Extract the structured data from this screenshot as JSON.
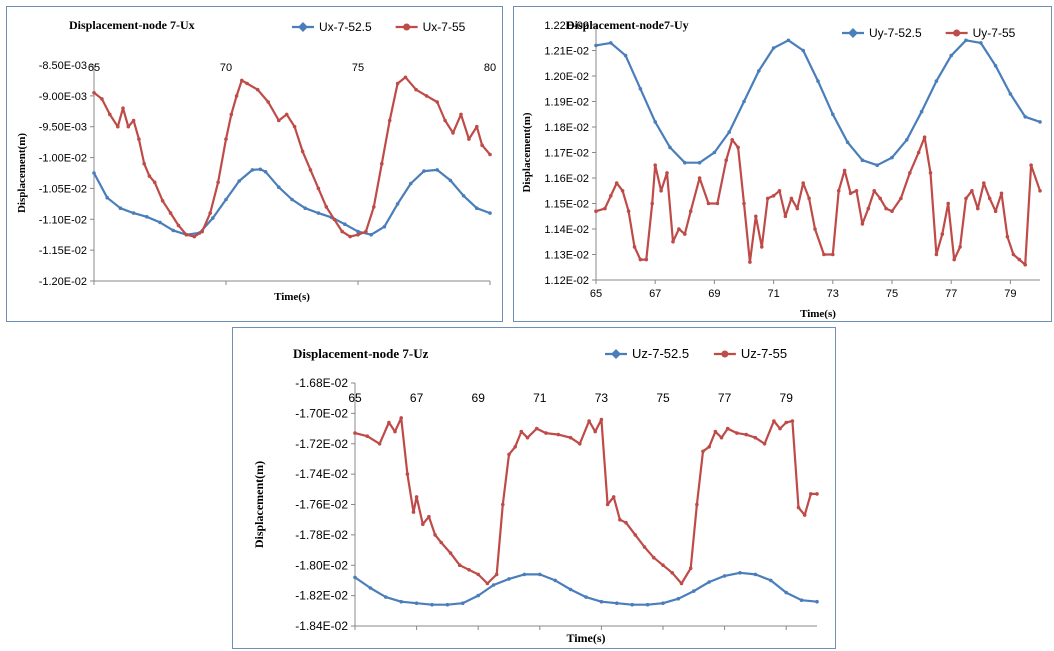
{
  "chart_data": [
    {
      "type": "line",
      "title": "Displacement-node 7-Ux",
      "xlabel": "Time(s)",
      "ylabel": "Displacement(m)",
      "xlim": [
        65,
        80
      ],
      "ylim": [
        -0.012,
        -0.0085
      ],
      "x_ticks": [
        65,
        70,
        75,
        80
      ],
      "x_tick_labels": [
        "65",
        "70",
        "75",
        "80"
      ],
      "y_ticks": [
        -0.0085,
        -0.009,
        -0.0095,
        -0.01,
        -0.0105,
        -0.011,
        -0.0115,
        -0.012
      ],
      "y_tick_labels": [
        "-8.50E-03",
        "-9.00E-03",
        "-9.50E-03",
        "-1.00E-02",
        "-1.05E-02",
        "-1.10E-02",
        "-1.15E-02",
        "-1.20E-02"
      ],
      "grid": false,
      "legend": "top-right",
      "series": [
        {
          "name": "Ux-7-52.5",
          "color": "#4a7ebb",
          "x": [
            65,
            65.5,
            66,
            66.5,
            67,
            67.5,
            68,
            68.5,
            69,
            69.5,
            70,
            70.5,
            71,
            71.3,
            71.5,
            72,
            72.5,
            73,
            73.5,
            74,
            74.5,
            75,
            75.5,
            76,
            76.5,
            77,
            77.5,
            78,
            78.5,
            79,
            79.5,
            80
          ],
          "y": [
            -0.01025,
            -0.01065,
            -0.01082,
            -0.0109,
            -0.01096,
            -0.01105,
            -0.01118,
            -0.01125,
            -0.01122,
            -0.01098,
            -0.01068,
            -0.01038,
            -0.0102,
            -0.01019,
            -0.01023,
            -0.01048,
            -0.01068,
            -0.01082,
            -0.0109,
            -0.01097,
            -0.01108,
            -0.0112,
            -0.01125,
            -0.01112,
            -0.01075,
            -0.01042,
            -0.01022,
            -0.0102,
            -0.01037,
            -0.01062,
            -0.01082,
            -0.0109
          ]
        },
        {
          "name": "Ux-7-55",
          "color": "#be4b48",
          "x": [
            65,
            65.3,
            65.6,
            65.9,
            66.1,
            66.3,
            66.5,
            66.7,
            66.9,
            67.1,
            67.3,
            67.6,
            67.9,
            68.2,
            68.5,
            68.8,
            69.1,
            69.4,
            69.7,
            70,
            70.2,
            70.4,
            70.6,
            70.8,
            71.2,
            71.6,
            72,
            72.3,
            72.6,
            72.9,
            73.2,
            73.5,
            73.8,
            74.1,
            74.4,
            74.7,
            75,
            75.3,
            75.6,
            75.9,
            76.2,
            76.5,
            76.8,
            77.2,
            77.6,
            78,
            78.3,
            78.6,
            78.9,
            79.2,
            79.5,
            79.7,
            80
          ],
          "y": [
            -0.00895,
            -0.00905,
            -0.0093,
            -0.0095,
            -0.0092,
            -0.0095,
            -0.0094,
            -0.0097,
            -0.0101,
            -0.0103,
            -0.0104,
            -0.0107,
            -0.0109,
            -0.0111,
            -0.01125,
            -0.01128,
            -0.0112,
            -0.0109,
            -0.0104,
            -0.0097,
            -0.0093,
            -0.009,
            -0.00875,
            -0.0088,
            -0.0089,
            -0.0091,
            -0.0094,
            -0.0093,
            -0.0095,
            -0.0099,
            -0.0102,
            -0.0105,
            -0.0108,
            -0.011,
            -0.0112,
            -0.01128,
            -0.01125,
            -0.0112,
            -0.0108,
            -0.0101,
            -0.0094,
            -0.0088,
            -0.0087,
            -0.0089,
            -0.009,
            -0.0091,
            -0.0094,
            -0.0096,
            -0.0093,
            -0.0097,
            -0.0095,
            -0.0098,
            -0.00995
          ]
        }
      ]
    },
    {
      "type": "line",
      "title": "Displacement-node7-Uy",
      "xlabel": "Time(s)",
      "ylabel": "Displacement(m)",
      "xlim": [
        65,
        80
      ],
      "ylim": [
        0.0112,
        0.0122
      ],
      "x_ticks": [
        65,
        67,
        69,
        71,
        73,
        75,
        77,
        79
      ],
      "x_tick_labels": [
        "65",
        "67",
        "69",
        "71",
        "73",
        "75",
        "77",
        "79"
      ],
      "y_ticks": [
        0.0122,
        0.0121,
        0.012,
        0.0119,
        0.0118,
        0.0117,
        0.0116,
        0.0115,
        0.0114,
        0.0113,
        0.0112
      ],
      "y_tick_labels": [
        "1.22E-02",
        "1.21E-02",
        "1.20E-02",
        "1.19E-02",
        "1.18E-02",
        "1.17E-02",
        "1.16E-02",
        "1.15E-02",
        "1.14E-02",
        "1.13E-02",
        "1.12E-02"
      ],
      "grid": false,
      "legend": "top-right",
      "series": [
        {
          "name": "Uy-7-52.5",
          "color": "#4a7ebb",
          "x": [
            65,
            65.5,
            66,
            66.5,
            67,
            67.5,
            68,
            68.5,
            69,
            69.5,
            70,
            70.5,
            71,
            71.5,
            72,
            72.5,
            73,
            73.5,
            74,
            74.5,
            75,
            75.5,
            76,
            76.5,
            77,
            77.5,
            78,
            78.5,
            79,
            79.5,
            80
          ],
          "y": [
            0.01212,
            0.01213,
            0.01208,
            0.01195,
            0.01182,
            0.01172,
            0.01166,
            0.01166,
            0.0117,
            0.01178,
            0.0119,
            0.01202,
            0.01211,
            0.01214,
            0.0121,
            0.01198,
            0.01185,
            0.01174,
            0.01167,
            0.01165,
            0.01168,
            0.01175,
            0.01186,
            0.01198,
            0.01208,
            0.01214,
            0.01213,
            0.01204,
            0.01193,
            0.01184,
            0.01182
          ]
        },
        {
          "name": "Uy-7-55",
          "color": "#be4b48",
          "x": [
            65,
            65.3,
            65.5,
            65.7,
            65.9,
            66.1,
            66.3,
            66.5,
            66.7,
            66.9,
            67,
            67.2,
            67.4,
            67.6,
            67.8,
            68,
            68.2,
            68.5,
            68.8,
            69.1,
            69.4,
            69.6,
            69.8,
            70,
            70.2,
            70.4,
            70.6,
            70.8,
            71,
            71.2,
            71.4,
            71.6,
            71.8,
            72,
            72.2,
            72.4,
            72.7,
            73,
            73.2,
            73.4,
            73.6,
            73.8,
            74,
            74.2,
            74.4,
            74.6,
            74.8,
            75,
            75.3,
            75.6,
            75.9,
            76.1,
            76.3,
            76.5,
            76.7,
            76.9,
            77.1,
            77.3,
            77.5,
            77.7,
            77.9,
            78.1,
            78.3,
            78.5,
            78.7,
            78.9,
            79.1,
            79.3,
            79.5,
            79.7,
            80
          ],
          "y": [
            0.01147,
            0.01148,
            0.01153,
            0.01158,
            0.01155,
            0.01147,
            0.01133,
            0.01128,
            0.01128,
            0.0115,
            0.01165,
            0.01155,
            0.01162,
            0.01135,
            0.0114,
            0.01138,
            0.01147,
            0.0116,
            0.0115,
            0.0115,
            0.01167,
            0.01175,
            0.01172,
            0.0115,
            0.01127,
            0.01145,
            0.01133,
            0.01152,
            0.01153,
            0.01155,
            0.01145,
            0.01152,
            0.01148,
            0.01158,
            0.01152,
            0.0114,
            0.0113,
            0.0113,
            0.01155,
            0.01163,
            0.01154,
            0.01155,
            0.01142,
            0.01148,
            0.01155,
            0.01152,
            0.01148,
            0.01147,
            0.01152,
            0.01162,
            0.0117,
            0.01176,
            0.01162,
            0.0113,
            0.01138,
            0.0115,
            0.01128,
            0.01133,
            0.01152,
            0.01155,
            0.01148,
            0.01158,
            0.01152,
            0.01147,
            0.01154,
            0.01137,
            0.0113,
            0.01128,
            0.01126,
            0.01165,
            0.01155
          ]
        }
      ]
    },
    {
      "type": "line",
      "title": "Displacement-node 7-Uz",
      "xlabel": "Time(s)",
      "ylabel": "Displacement(m)",
      "xlim": [
        65,
        80
      ],
      "ylim": [
        -0.0184,
        -0.0168
      ],
      "x_ticks": [
        65,
        67,
        69,
        71,
        73,
        75,
        77,
        79
      ],
      "x_tick_labels": [
        "65",
        "67",
        "69",
        "71",
        "73",
        "75",
        "77",
        "79"
      ],
      "y_ticks": [
        -0.0168,
        -0.017,
        -0.0172,
        -0.0174,
        -0.0176,
        -0.0178,
        -0.018,
        -0.0182,
        -0.0184
      ],
      "y_tick_labels": [
        "-1.68E-02",
        "-1.70E-02",
        "-1.72E-02",
        "-1.74E-02",
        "-1.76E-02",
        "-1.78E-02",
        "-1.80E-02",
        "-1.82E-02",
        "-1.84E-02"
      ],
      "grid": false,
      "legend": "top-right",
      "series": [
        {
          "name": "Uz-7-52.5",
          "color": "#4a7ebb",
          "x": [
            65,
            65.5,
            66,
            66.5,
            67,
            67.5,
            68,
            68.5,
            69,
            69.5,
            70,
            70.5,
            71,
            71.5,
            72,
            72.5,
            73,
            73.5,
            74,
            74.5,
            75,
            75.5,
            76,
            76.5,
            77,
            77.5,
            78,
            78.5,
            79,
            79.5,
            80
          ],
          "y": [
            -0.01808,
            -0.01815,
            -0.01821,
            -0.01824,
            -0.01825,
            -0.01826,
            -0.01826,
            -0.01825,
            -0.0182,
            -0.01813,
            -0.01809,
            -0.01806,
            -0.01806,
            -0.0181,
            -0.01816,
            -0.01821,
            -0.01824,
            -0.01825,
            -0.01826,
            -0.01826,
            -0.01825,
            -0.01822,
            -0.01817,
            -0.01811,
            -0.01807,
            -0.01805,
            -0.01806,
            -0.0181,
            -0.01818,
            -0.01823,
            -0.01824
          ]
        },
        {
          "name": "Uz-7-55",
          "color": "#be4b48",
          "x": [
            65,
            65.4,
            65.8,
            66.1,
            66.3,
            66.5,
            66.7,
            66.9,
            67,
            67.2,
            67.4,
            67.6,
            67.8,
            68.1,
            68.4,
            68.7,
            69,
            69.3,
            69.6,
            69.8,
            70,
            70.2,
            70.4,
            70.6,
            70.9,
            71.2,
            71.6,
            72,
            72.3,
            72.6,
            72.8,
            73,
            73.2,
            73.4,
            73.6,
            73.8,
            74.1,
            74.4,
            74.7,
            75,
            75.3,
            75.6,
            75.9,
            76.1,
            76.3,
            76.5,
            76.7,
            76.9,
            77.1,
            77.4,
            77.7,
            78,
            78.3,
            78.6,
            78.8,
            79,
            79.2,
            79.4,
            79.6,
            79.8,
            80
          ],
          "y": [
            -0.01713,
            -0.01715,
            -0.0172,
            -0.01706,
            -0.01712,
            -0.01703,
            -0.0174,
            -0.01765,
            -0.01755,
            -0.01773,
            -0.01768,
            -0.0178,
            -0.01785,
            -0.01792,
            -0.018,
            -0.01803,
            -0.01806,
            -0.01812,
            -0.01806,
            -0.0176,
            -0.01727,
            -0.01722,
            -0.01712,
            -0.01716,
            -0.0171,
            -0.01713,
            -0.01714,
            -0.01716,
            -0.0172,
            -0.01705,
            -0.01712,
            -0.01704,
            -0.0176,
            -0.01755,
            -0.0177,
            -0.01772,
            -0.0178,
            -0.01788,
            -0.01795,
            -0.018,
            -0.01805,
            -0.01812,
            -0.01802,
            -0.0176,
            -0.01725,
            -0.01722,
            -0.01712,
            -0.01716,
            -0.0171,
            -0.01713,
            -0.01714,
            -0.01716,
            -0.0172,
            -0.01705,
            -0.0171,
            -0.01706,
            -0.01705,
            -0.01762,
            -0.01767,
            -0.01753,
            -0.01753
          ]
        }
      ]
    }
  ]
}
